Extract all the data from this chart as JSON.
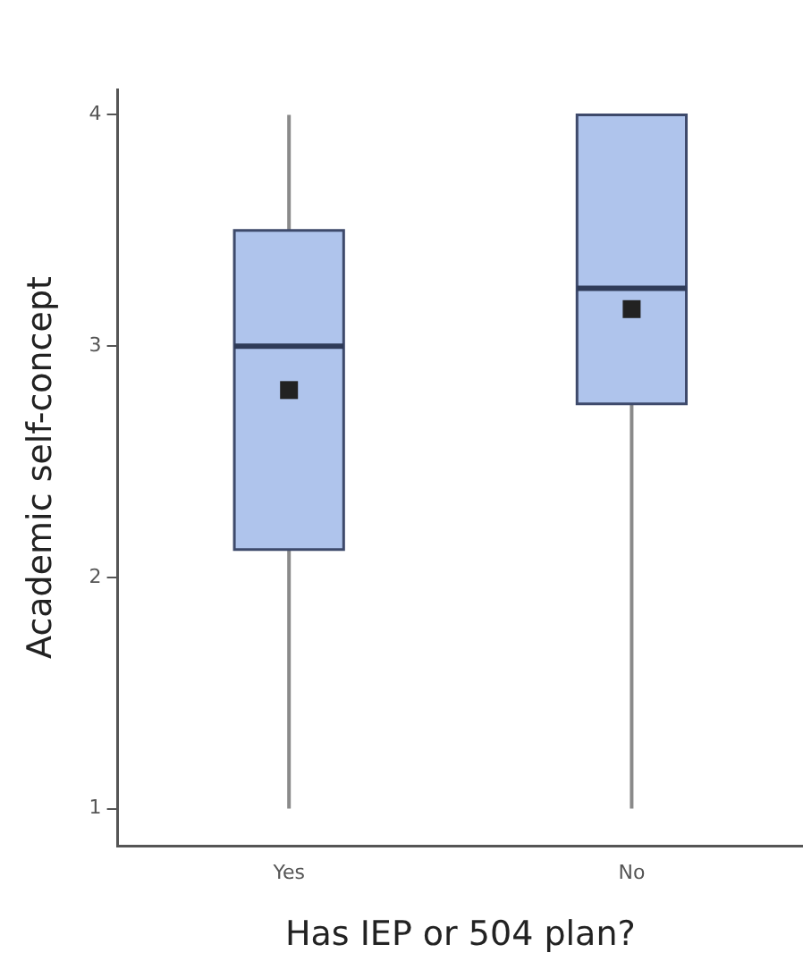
{
  "chart_data": {
    "type": "box",
    "xlabel": "Has IEP or 504 plan?",
    "ylabel": "Academic self-concept",
    "categories": [
      "Yes",
      "No"
    ],
    "boxes": [
      {
        "low": 1,
        "q1": 2.12,
        "median": 3,
        "q3": 3.5,
        "high": 4,
        "mean": 2.81
      },
      {
        "low": 1,
        "q1": 2.75,
        "median": 3.25,
        "q3": 4,
        "high": 4,
        "mean": 3.16
      }
    ],
    "color": "#afc4ec",
    "marker": "square",
    "ylim": [
      0.84,
      4.11
    ],
    "yticks": [
      1,
      2,
      3,
      4
    ],
    "grid": false,
    "legend": false
  }
}
